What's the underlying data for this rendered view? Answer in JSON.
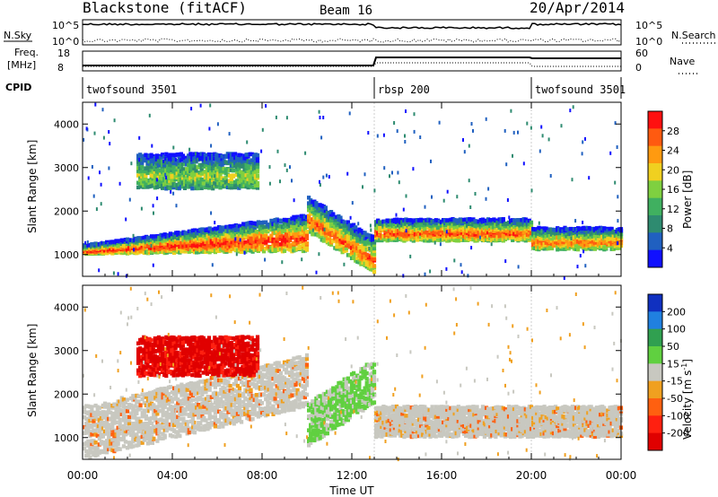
{
  "header": {
    "station": "Blackstone (fitACF)",
    "beam": "Beam 16",
    "date": "20/Apr/2014"
  },
  "left_labels": {
    "nsky": "N.Sky",
    "freq": "Freq.",
    "mhz": "[MHz]",
    "cpid": "CPID"
  },
  "right_labels": {
    "nsearch": "N.Search",
    "nave": "Nave"
  },
  "noise_axis": {
    "left_ticks": [
      "10^5",
      "10^0"
    ],
    "right_ticks": [
      "10^5",
      "10^0"
    ]
  },
  "freq_axis": {
    "left_ticks": [
      "18",
      "8"
    ],
    "right_ticks": [
      "60",
      "0"
    ]
  },
  "cpid_segments": [
    {
      "label": "twofsound 3501",
      "start_h": 0,
      "end_h": 13.0
    },
    {
      "label": "rbsp 200",
      "start_h": 13.0,
      "end_h": 20.0
    },
    {
      "label": "twofsound 3501",
      "start_h": 20.0,
      "end_h": 24.0
    }
  ],
  "x_axis": {
    "label": "Time UT",
    "ticks": [
      "00:00",
      "04:00",
      "08:00",
      "12:00",
      "16:00",
      "20:00",
      "00:00"
    ]
  },
  "colors": {
    "gridline": "#cccccc"
  },
  "chart_data": [
    {
      "type": "heatmap",
      "title": "",
      "xlabel": "Time UT",
      "ylabel": "Slant Range [km]",
      "xlim_hours": [
        0,
        24
      ],
      "ylim": [
        500,
        4500
      ],
      "y_ticks": [
        "1000",
        "2000",
        "3000",
        "4000"
      ],
      "colorbar": {
        "label": "Power [dB]",
        "ticks": [
          "4",
          "8",
          "12",
          "16",
          "20",
          "24",
          "28"
        ],
        "colors": [
          "#1010ff",
          "#2060c0",
          "#2e8b70",
          "#40b060",
          "#7fd040",
          "#f0d020",
          "#ff9a10",
          "#ff5a10",
          "#ff1010"
        ]
      },
      "echo_bands": [
        {
          "t0": 0,
          "t1": 10,
          "r0": 1000,
          "r1": 1900,
          "peak_r0": 1200,
          "peak_r1": 1900,
          "peak_db": 28
        },
        {
          "t0": 10,
          "t1": 13,
          "r0": 1900,
          "r1": 950,
          "peak_db": 26
        },
        {
          "t0": 13,
          "t1": 20,
          "r0": 1300,
          "r1": 1800,
          "peak_db": 26
        },
        {
          "t0": 20,
          "t1": 24,
          "r0": 1100,
          "r1": 1600,
          "peak_db": 24
        },
        {
          "t0": 2.4,
          "t1": 7.8,
          "r0": 2500,
          "r1": 3300,
          "peak_db": 16
        }
      ]
    },
    {
      "type": "heatmap",
      "title": "",
      "xlabel": "Time UT",
      "ylabel": "Slant Range [km]",
      "xlim_hours": [
        0,
        24
      ],
      "ylim": [
        500,
        4500
      ],
      "y_ticks": [
        "1000",
        "2000",
        "3000",
        "4000"
      ],
      "colorbar": {
        "label": "Velocity [m s-1]",
        "label_main": "Velocity [m s",
        "label_exp": "-1",
        "ticks": [
          "200",
          "100",
          "50",
          "15",
          "-15",
          "-50",
          "-100",
          "-200"
        ],
        "colors": [
          "#1030c0",
          "#2080e0",
          "#30a050",
          "#60d040",
          "#c8c8c0",
          "#f0a020",
          "#ff6010",
          "#ff2010",
          "#e00000"
        ]
      },
      "echo_bands": [
        {
          "t0": 0,
          "t1": 10,
          "r0": 1100,
          "r1": 2300,
          "velocity": 0
        },
        {
          "t0": 10,
          "t1": 13,
          "r0": 1300,
          "r1": 2300,
          "velocity": 60
        },
        {
          "t0": 13,
          "t1": 24,
          "r0": 1000,
          "r1": 1700,
          "velocity": 0
        },
        {
          "t0": 2.4,
          "t1": 7.8,
          "r0": 2400,
          "r1": 3300,
          "velocity": -200
        }
      ]
    }
  ]
}
